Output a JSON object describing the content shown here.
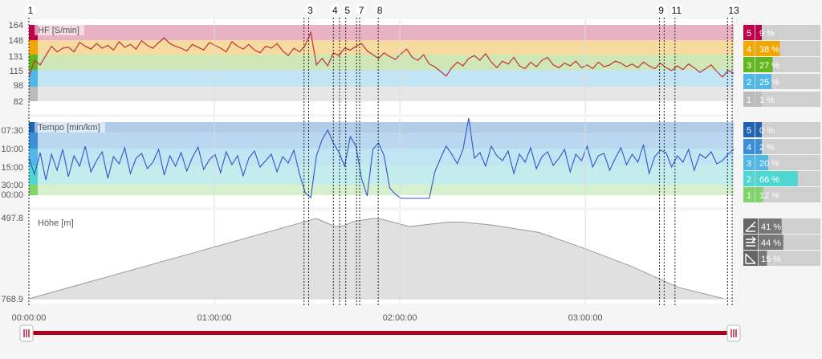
{
  "chart_data": [
    {
      "type": "line",
      "title": "HF [S/min]",
      "yticks": [
        "164",
        "148",
        "131",
        "115",
        "98",
        "82"
      ],
      "ylim": [
        78,
        170
      ],
      "series": [
        {
          "values": [
            108,
            126,
            121,
            131,
            141,
            135,
            139,
            140,
            135,
            145,
            141,
            138,
            144,
            139,
            142,
            137,
            146,
            140,
            143,
            138,
            147,
            142,
            139,
            145,
            150,
            144,
            141,
            139,
            136,
            143,
            140,
            137,
            145,
            142,
            139,
            135,
            146,
            141,
            138,
            143,
            137,
            134,
            141,
            139,
            144,
            136,
            131,
            139,
            135,
            142,
            156,
            121,
            128,
            120,
            134,
            131,
            139,
            137,
            141,
            144,
            136,
            132,
            128,
            134,
            130,
            127,
            133,
            138,
            129,
            126,
            132,
            122,
            119,
            114,
            109,
            118,
            124,
            120,
            128,
            131,
            126,
            133,
            124,
            118,
            125,
            122,
            129,
            120,
            117,
            124,
            119,
            126,
            129,
            121,
            118,
            123,
            120,
            125,
            118,
            121,
            117,
            124,
            119,
            121,
            125,
            123,
            119,
            122,
            118,
            124,
            120,
            117,
            123,
            118,
            115,
            120,
            116,
            122,
            118,
            113,
            117,
            121,
            114,
            108,
            115,
            112
          ]
        }
      ],
      "zones": [
        {
          "zone": "5",
          "percent": "9 %",
          "color": "#c0004a",
          "band": "#e8b2c4"
        },
        {
          "zone": "4",
          "percent": "38 %",
          "color": "#f0a800",
          "band": "#f6dba0"
        },
        {
          "zone": "3",
          "percent": "27 %",
          "color": "#60b81e",
          "band": "#cfe7b6"
        },
        {
          "zone": "2",
          "percent": "25 %",
          "color": "#4fb8e6",
          "band": "#c2e4f3"
        },
        {
          "zone": "1",
          "percent": "1 %",
          "color": "#bbbbbb",
          "band": "#e6e6e6"
        }
      ]
    },
    {
      "type": "line",
      "title": "Tempo [min/km]",
      "yticks": [
        "07:30",
        "10:00",
        "15:00",
        "30:00",
        "00:00"
      ],
      "series": [
        {
          "values": [
            0.55,
            0.35,
            0.62,
            0.28,
            0.6,
            0.4,
            0.66,
            0.32,
            0.58,
            0.45,
            0.7,
            0.38,
            0.52,
            0.63,
            0.3,
            0.57,
            0.48,
            0.68,
            0.36,
            0.55,
            0.61,
            0.42,
            0.5,
            0.66,
            0.34,
            0.58,
            0.45,
            0.62,
            0.39,
            0.56,
            0.69,
            0.41,
            0.53,
            0.6,
            0.37,
            0.63,
            0.47,
            0.58,
            0.33,
            0.55,
            0.64,
            0.44,
            0.52,
            0.6,
            0.38,
            0.57,
            0.49,
            0.65,
            0.35,
            0.12,
            0.06,
            0.58,
            0.78,
            0.9,
            0.74,
            0.62,
            0.45,
            0.82,
            0.7,
            0.3,
            0.08,
            0.66,
            0.74,
            0.58,
            0.18,
            0.1,
            0.05,
            0.05,
            0.05,
            0.05,
            0.05,
            0.05,
            0.38,
            0.55,
            0.7,
            0.6,
            0.48,
            0.66,
            1.05,
            0.55,
            0.62,
            0.45,
            0.7,
            0.58,
            0.52,
            0.64,
            0.36,
            0.6,
            0.5,
            0.68,
            0.42,
            0.57,
            0.63,
            0.46,
            0.55,
            0.66,
            0.38,
            0.6,
            0.52,
            0.7,
            0.44,
            0.58,
            0.61,
            0.4,
            0.55,
            0.68,
            0.47,
            0.6,
            0.5,
            0.72,
            0.36,
            0.57,
            0.65,
            0.62,
            0.44,
            0.58,
            0.5,
            0.66,
            0.4,
            0.6,
            0.55,
            0.63,
            0.48,
            0.52,
            0.6,
            0.66
          ]
        }
      ],
      "zones": [
        {
          "zone": "5",
          "percent": "0 %",
          "color": "#1f64b4",
          "band": "#b0cce8"
        },
        {
          "zone": "4",
          "percent": "2 %",
          "color": "#3a8fd8",
          "band": "#b9d8ef"
        },
        {
          "zone": "3",
          "percent": "20 %",
          "color": "#4fb8e6",
          "band": "#c1e5f3"
        },
        {
          "zone": "2",
          "percent": "66 %",
          "color": "#4fd6d0",
          "band": "#c4ecec"
        },
        {
          "zone": "1",
          "percent": "12 %",
          "color": "#7fd46a",
          "band": "#d6efcc"
        }
      ]
    },
    {
      "type": "area",
      "title": "Höhe [m]",
      "yticks": [
        "497.8",
        "768.9"
      ],
      "ylim": [
        768.9,
        497.8
      ],
      "x": [
        "00:00:00",
        "01:33:00",
        "01:39:00",
        "01:42:00",
        "01:45:00",
        "01:51:00",
        "01:54:00",
        "02:03:00",
        "02:16:00",
        "02:20:00",
        "02:30:00",
        "02:45:00",
        "03:00:00",
        "03:15:00",
        "03:30:00",
        "03:45:00"
      ],
      "values": [
        768.9,
        497.8,
        525,
        522,
        508,
        498,
        500,
        525,
        510,
        510,
        520,
        545,
        600,
        660,
        730,
        768.9
      ],
      "stats": [
        {
          "icon": "ascent-icon",
          "percent": "41 %"
        },
        {
          "icon": "flat-icon",
          "percent": "44 %"
        },
        {
          "icon": "descent-icon",
          "percent": "15 %"
        }
      ]
    }
  ],
  "time_axis": {
    "labels": [
      "00:00:00",
      "01:00:00",
      "02:00:00",
      "03:00:00"
    ]
  },
  "markers": [
    "1",
    "3",
    "4",
    "5",
    "7",
    "8",
    "9",
    "11",
    "13"
  ],
  "colors": {
    "hr_line": "#c0303a",
    "pace_line": "#2f55c8",
    "slider": "#b00020"
  }
}
